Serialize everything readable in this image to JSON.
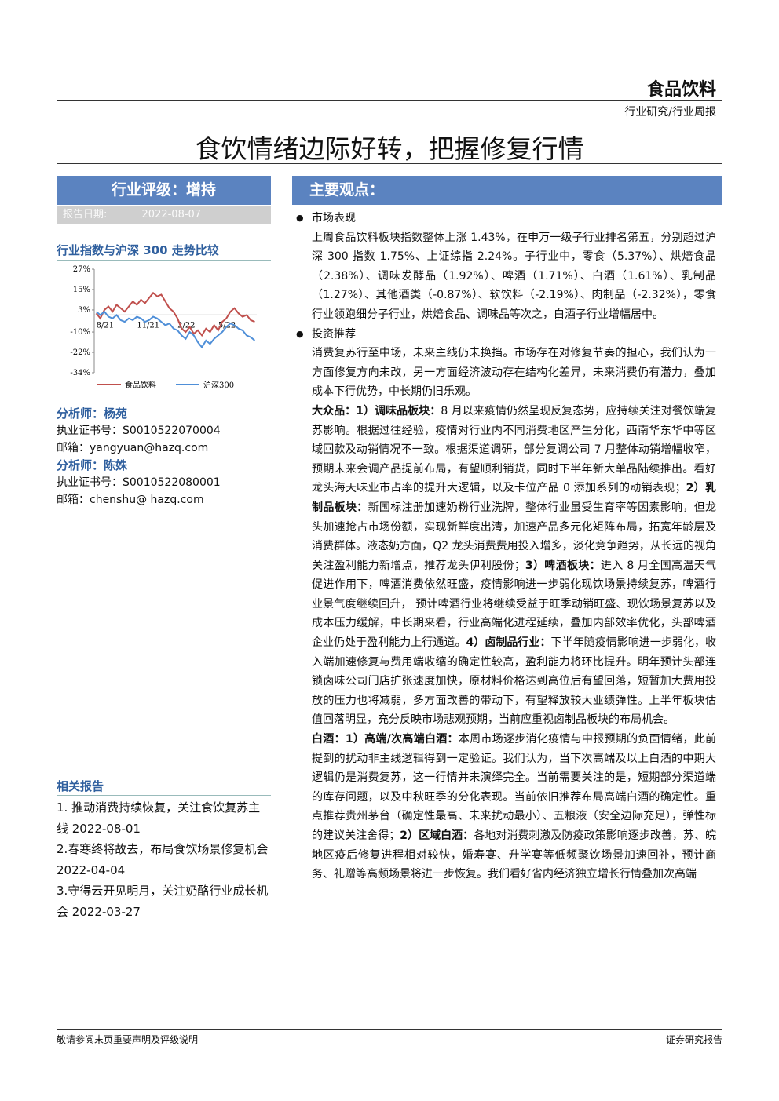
{
  "header": {
    "sector": "食品饮料",
    "category": "行业研究/行业周报",
    "title": "食饮情绪边际好转，把握修复行情"
  },
  "sidebar": {
    "rating": "行业评级：增持",
    "date_label": "报告日期:",
    "date": "2022-08-07",
    "chart_title": "行业指数与沪深 300 走势比较",
    "analysts": [
      {
        "name": "分析师：杨苑",
        "cert": "执业证书号：S0010522070004",
        "email": "邮箱：yangyuan@hazq.com"
      },
      {
        "name": "分析师：陈姝",
        "cert": "执业证书号：S0010522080001",
        "email": "邮箱：chenshu@ hazq.com"
      }
    ],
    "related_title": "相关报告",
    "related": [
      "1. 推动消费持续恢复，关注食饮复苏主线 2022-08-01",
      "2.春寒终将故去，布局食饮场景修复机会 2022-04-04",
      "3.守得云开见明月，关注奶酪行业成长机会 2022-03-27"
    ]
  },
  "chart_data": {
    "type": "line",
    "categories": [
      "8/21",
      null,
      null,
      null,
      null,
      null,
      null,
      null,
      null,
      null,
      "11/21",
      null,
      null,
      null,
      null,
      null,
      null,
      null,
      null,
      null,
      "2/22",
      null,
      null,
      null,
      null,
      null,
      null,
      null,
      null,
      null,
      "5/22",
      null,
      null,
      null,
      null,
      null,
      null,
      null,
      null,
      null
    ],
    "series": [
      {
        "name": "食品饮料",
        "color": "#c0504d",
        "values": [
          1,
          -2,
          3,
          5,
          2,
          6,
          4,
          2,
          5,
          8,
          6,
          9,
          7,
          10,
          13,
          11,
          12,
          8,
          4,
          2,
          -2,
          -8,
          -10,
          -7,
          -11,
          -9,
          -12,
          -8,
          -10,
          -6,
          -9,
          -4,
          -2,
          2,
          4,
          1,
          -1,
          0,
          -3,
          -4
        ]
      },
      {
        "name": "沪深300",
        "color": "#4f8fd8",
        "values": [
          2,
          0,
          2,
          -1,
          -2,
          0,
          -3,
          -4,
          -2,
          -3,
          -1,
          -2,
          -4,
          -3,
          -1,
          -2,
          -4,
          -6,
          -5,
          -8,
          -9,
          -12,
          -14,
          -10,
          -12,
          -16,
          -19,
          -15,
          -17,
          -14,
          -12,
          -10,
          -7,
          -5,
          -6,
          -8,
          -9,
          -12,
          -13,
          -15
        ]
      }
    ],
    "ylim": [
      -34,
      27
    ],
    "yticks": [
      {
        "value": 27,
        "label": "27%"
      },
      {
        "value": 15,
        "label": "15%"
      },
      {
        "value": 3,
        "label": "3%"
      },
      {
        "value": -10,
        "label": "-10%"
      },
      {
        "value": -22,
        "label": "-22%"
      },
      {
        "value": -34,
        "label": "-34%"
      }
    ]
  },
  "main": {
    "heading": "主要观点：",
    "sections": [
      {
        "bullet": "市场表现",
        "paragraphs": [
          [
            {
              "text": "上周食品饮料板块指数整体上涨 1.43%，在申万一级子行业排名第五，分别超过沪深 300 指数 1.75%、上证综指 2.24%。子行业中，零食（5.37%）、烘焙食品（2.38%）、调味发酵品（1.92%）、啤酒（1.71%）、白酒（1.61%）、乳制品（1.27%）、其他酒类（-0.87%）、软饮料（-2.19%）、肉制品（-2.32%），零食行业领跑细分子行业，烘焙食品、调味品等次之，白酒子行业增幅居中。"
            }
          ]
        ]
      },
      {
        "bullet": "投资推荐",
        "paragraphs": [
          [
            {
              "text": "消费复苏行至中场，未来主线仍未换挡。市场存在对修复节奏的担心，我们认为一方面修复方向未改，另一方面经济波动存在结构化差异，未来消费仍有潜力，叠加成本下行优势，中长期仍旧乐观。"
            }
          ],
          [
            {
              "text": "大众品：1）调味品板块：",
              "bold": true
            },
            {
              "text": "8 月以来疫情仍然呈现反复态势，应持续关注对餐饮端复苏影响。根据过往经验，疫情对行业内不同消费地区产生分化，西南华东华中等区域回款及动销情况不一致。根据渠道调研，部分复调公司 7 月整体动销增幅收窄，预期未来会调产品提前布局，有望顺利销货，同时下半年新大单品陆续推出。看好龙头海天味业市占率的提升大逻辑，以及卡位产品 0 添加系列的动销表现；"
            },
            {
              "text": "2）乳制品板块：",
              "bold": true
            },
            {
              "text": "新国标注册加速奶粉行业洗牌，整体行业虽受生育率等因素影响，但龙头加速抢占市场份额，实现新鲜度出清，加速产品多元化矩阵布局，拓宽年龄层及消费群体。液态奶方面，Q2 龙头消费费用投入增多，淡化竞争趋势，从长远的视角关注盈利能力新增点，推荐龙头伊利股份；"
            },
            {
              "text": "3）啤酒板块：",
              "bold": true
            },
            {
              "text": "进入 8 月全国高温天气促进作用下，啤酒消费依然旺盛，疫情影响进一步弱化现饮场景持续复苏，啤酒行业景气度继续回升， 预计啤酒行业将继续受益于旺季动销旺盛、现饮场景复苏以及成本压力缓解，中长期来看，行业高端化进程延续，叠加内部效率优化，头部啤酒企业仍处于盈利能力上行通道。"
            },
            {
              "text": "4）卤制品行业：",
              "bold": true
            },
            {
              "text": "下半年随疫情影响进一步弱化，收入端加速修复与费用端收缩的确定性较高，盈利能力将环比提升。明年预计头部连锁卤味公司门店扩张速度加快，原材料价格达到高位后有望回落，短暂加大费用投放的压力也将减弱，多方面改善的带动下，有望释放较大业绩弹性。上半年板块估值回落明显，充分反映市场悲观预期，当前应重视卤制品板块的布局机会。"
            }
          ],
          [
            {
              "text": "白酒：1）高端/次高端白酒：",
              "bold": true
            },
            {
              "text": "本周市场逐步消化疫情与中报预期的负面情绪，此前提到的扰动非主线逻辑得到一定验证。我们认为，当下次高端及以上白酒的中期大逻辑仍是消费复苏，这一行情并未演绎完全。当前需要关注的是，短期部分渠道端的库存问题，以及中秋旺季的分化表现。当前依旧推荐布局高端白酒的确定性。重点推荐贵州茅台（确定性最高、未来扰动最小）、五粮液（安全边际充足），弹性标的建议关注舍得；"
            },
            {
              "text": "2）区域白酒：",
              "bold": true
            },
            {
              "text": "各地对消费刺激及防疫政策影响逐步改善，苏、皖地区疫后修复进程相对较快，婚寿宴、升学宴等低频聚饮场景加速回补，预计商务、礼赠等高频场景将进一步恢复。我们看好省内经济独立增长行情叠加次高端"
            }
          ]
        ]
      }
    ]
  },
  "footer": {
    "left": "敬请参阅末页重要声明及评级说明",
    "right": "证券研究报告"
  }
}
